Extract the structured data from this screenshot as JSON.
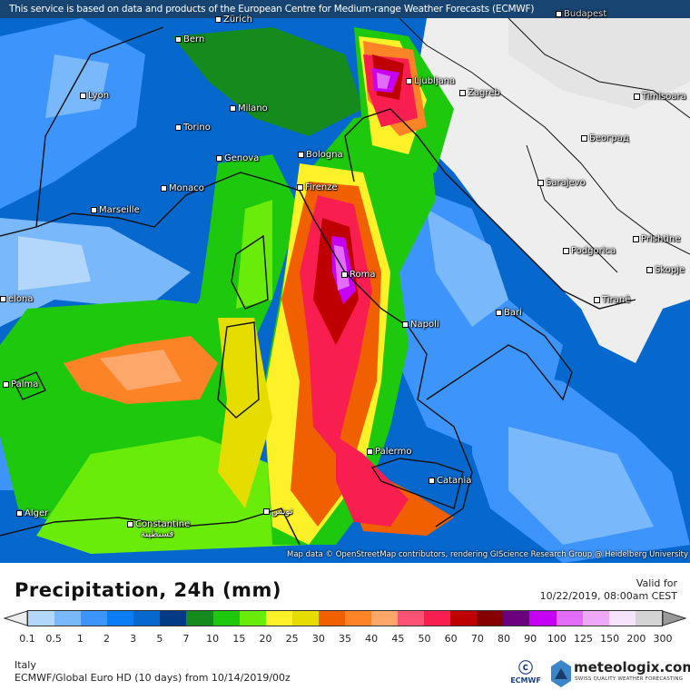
{
  "notice": "This service is based on data and products of the European Centre for Medium-range Weather Forecasts (ECMWF)",
  "cities": [
    {
      "name": "Zürich",
      "x": "Zurich"
    },
    {
      "name": "Budapest"
    },
    {
      "name": "Bern"
    },
    {
      "name": "Lyon"
    },
    {
      "name": "Milano"
    },
    {
      "name": "Ljubljana"
    },
    {
      "name": "Zagreb"
    },
    {
      "name": "Timisoara"
    },
    {
      "name": "Torino"
    },
    {
      "name": "Genova"
    },
    {
      "name": "Bologna"
    },
    {
      "name": "Београд"
    },
    {
      "name": "Monaco"
    },
    {
      "name": "Firenze"
    },
    {
      "name": "Sarajevo"
    },
    {
      "name": "Marseille"
    },
    {
      "name": "Roma"
    },
    {
      "name": "Podgorica"
    },
    {
      "name": "Prishtine"
    },
    {
      "name": "Skopje"
    },
    {
      "name": "Tiranë"
    },
    {
      "name": "elona"
    },
    {
      "name": "Bari"
    },
    {
      "name": "Napoli"
    },
    {
      "name": "Palma"
    },
    {
      "name": "Palermo"
    },
    {
      "name": "Catania"
    },
    {
      "name": "Alger"
    },
    {
      "name": "Constantine"
    },
    {
      "name": "قسنطينة"
    },
    {
      "name": "تونس"
    }
  ],
  "contour_labels": [
    "30",
    "20",
    "30",
    "20",
    "30",
    "20",
    "20",
    "10",
    "20",
    "1",
    "3",
    "1",
    "10",
    "20",
    "30",
    "20",
    "10",
    "50",
    "30",
    "20",
    "30",
    "10",
    "20",
    "1",
    "3",
    "20",
    "30",
    "50",
    "20",
    "30",
    "50",
    "10",
    "1",
    "1",
    "1",
    "10",
    "20"
  ],
  "attribution": "Map data © OpenStreetMap contributors, rendering GIScience Research Group @ Heidelberg University",
  "title": "Precipitation, 24h (mm)",
  "valid_label": "Valid for",
  "valid_time": "10/22/2019, 08:00am CEST",
  "legend": {
    "ticks": [
      "0.1",
      "0.5",
      "1",
      "2",
      "3",
      "5",
      "7",
      "10",
      "15",
      "20",
      "25",
      "30",
      "35",
      "40",
      "45",
      "50",
      "60",
      "70",
      "80",
      "90",
      "100",
      "125",
      "150",
      "200",
      "300"
    ],
    "colors": [
      "#b3d6fb",
      "#79b8fb",
      "#3d95fb",
      "#0a7cf5",
      "#0667cd",
      "#023a85",
      "#158b1e",
      "#1ec80c",
      "#6aec0a",
      "#fdf22a",
      "#e6dd00",
      "#f06000",
      "#fd8426",
      "#fda76b",
      "#fb5275",
      "#f81f50",
      "#be0000",
      "#870000",
      "#6a007e",
      "#c600f5",
      "#e06cf8",
      "#eda8f8",
      "#f6e4fc",
      "#d4d4d4"
    ]
  },
  "region": "Italy",
  "model": "ECMWF/Global Euro HD (10 days) from 10/14/2019/00z",
  "ecmwf_logo": "ECMWF",
  "brand": {
    "name": "meteologix.com",
    "tagline": "SWISS QUALITY WEATHER FORECASTING"
  }
}
